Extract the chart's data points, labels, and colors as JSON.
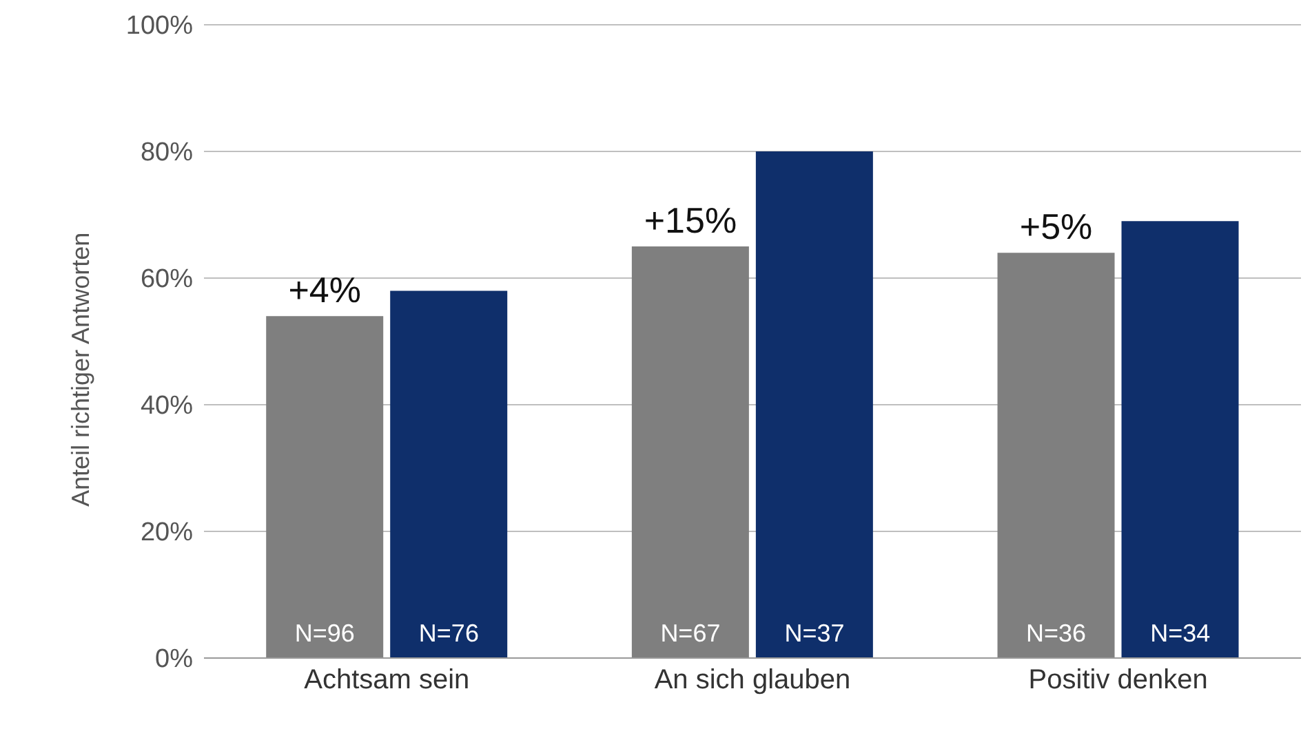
{
  "chart_data": {
    "type": "bar",
    "ylabel": "Anteil richtiger Antworten",
    "categories": [
      "Achtsam sein",
      "An sich glauben",
      "Positiv denken"
    ],
    "series": [
      {
        "color": "#7f7f7f",
        "values": [
          54,
          65,
          64
        ]
      },
      {
        "color": "#0f2f6b",
        "values": [
          58,
          80,
          69
        ]
      }
    ],
    "ylim": [
      0,
      100
    ],
    "yticks": [
      {
        "value": 0,
        "label": "0%"
      },
      {
        "value": 20,
        "label": "20%"
      },
      {
        "value": 40,
        "label": "40%"
      },
      {
        "value": 60,
        "label": "60%"
      },
      {
        "value": 80,
        "label": "80%"
      },
      {
        "value": 100,
        "label": "100%"
      }
    ],
    "grid": "y",
    "legend": false,
    "annotations": [
      {
        "text": "+4%",
        "x": "Achtsam sein",
        "y": 54
      },
      {
        "text": "+15%",
        "x": "An sich glauben",
        "y": 65
      },
      {
        "text": "+5%",
        "x": "Positiv denken",
        "y": 64
      },
      {
        "text": "N=96",
        "x": "Achtsam sein",
        "y": 0
      },
      {
        "text": "N=76",
        "x": "Achtsam sein",
        "y": 0
      },
      {
        "text": "N=67",
        "x": "An sich glauben",
        "y": 0
      },
      {
        "text": "N=37",
        "x": "An sich glauben",
        "y": 0
      },
      {
        "text": "N=36",
        "x": "Positiv denken",
        "y": 0
      },
      {
        "text": "N=34",
        "x": "Positiv denken",
        "y": 0
      }
    ]
  }
}
